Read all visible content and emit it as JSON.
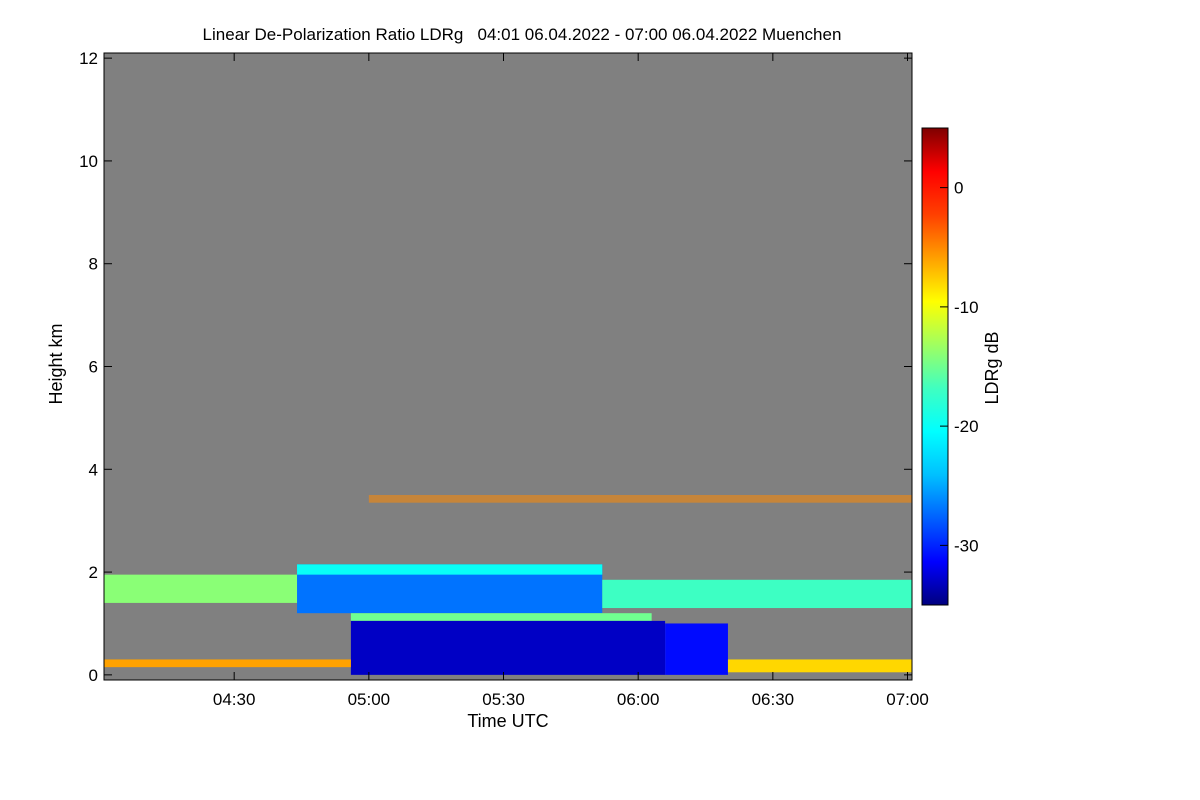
{
  "chart_data": {
    "type": "heatmap",
    "title": "Linear De-Polarization Ratio LDRg   04:01 06.04.2022 - 07:00 06.04.2022 Muenchen",
    "xlabel": "Time UTC",
    "ylabel": "Height km",
    "colorbar_label": "LDRg dB",
    "x_range_minutes": [
      241,
      421
    ],
    "y_range_km": [
      -0.1,
      12.1
    ],
    "x_ticks": [
      {
        "minutes": 270,
        "label": "04:30"
      },
      {
        "minutes": 300,
        "label": "05:00"
      },
      {
        "minutes": 330,
        "label": "05:30"
      },
      {
        "minutes": 360,
        "label": "06:00"
      },
      {
        "minutes": 390,
        "label": "06:30"
      },
      {
        "minutes": 420,
        "label": "07:00"
      }
    ],
    "y_ticks": [
      {
        "value": 0,
        "label": "0"
      },
      {
        "value": 2,
        "label": "2"
      },
      {
        "value": 4,
        "label": "4"
      },
      {
        "value": 6,
        "label": "6"
      },
      {
        "value": 8,
        "label": "8"
      },
      {
        "value": 10,
        "label": "10"
      },
      {
        "value": 12,
        "label": "12"
      }
    ],
    "colorbar_range_db": [
      -35,
      5
    ],
    "colorbar_ticks": [
      {
        "value": 0,
        "label": "0"
      },
      {
        "value": -10,
        "label": "-10"
      },
      {
        "value": -20,
        "label": "-20"
      },
      {
        "value": -30,
        "label": "-30"
      }
    ],
    "colormap": [
      "#00007f",
      "#0000ff",
      "#0060ff",
      "#00c0ff",
      "#00ffff",
      "#40ffc0",
      "#a0ff60",
      "#ffff00",
      "#ffa000",
      "#ff4000",
      "#ff0000",
      "#7f0000"
    ],
    "no_data_color": "#808080",
    "regions": [
      {
        "name": "cloud-upper-layer",
        "t_start": 284,
        "t_end": 352,
        "h_bottom": 1.2,
        "h_top": 2.15,
        "ldr_db": -27
      },
      {
        "name": "cloud-upper-edge",
        "t_start": 284,
        "t_end": 352,
        "h_bottom": 1.95,
        "h_top": 2.15,
        "ldr_db": -20
      },
      {
        "name": "cloud-base-line",
        "t_start": 296,
        "t_end": 363,
        "h_bottom": 1.05,
        "h_top": 1.2,
        "ldr_db": -15
      },
      {
        "name": "precip-below-cloud",
        "t_start": 296,
        "t_end": 366,
        "h_bottom": 0.0,
        "h_top": 1.05,
        "ldr_db": -33
      },
      {
        "name": "aerosol-layer-early",
        "t_start": 241,
        "t_end": 284,
        "h_bottom": 1.4,
        "h_top": 1.95,
        "ldr_db": -14
      },
      {
        "name": "aerosol-layer-late",
        "t_start": 352,
        "t_end": 421,
        "h_bottom": 1.3,
        "h_top": 1.85,
        "ldr_db": -17
      },
      {
        "name": "drizzle-tail",
        "t_start": 366,
        "t_end": 380,
        "h_bottom": 0.0,
        "h_top": 1.0,
        "ldr_db": -31
      },
      {
        "name": "surface-layer-early",
        "t_start": 241,
        "t_end": 296,
        "h_bottom": 0.15,
        "h_top": 0.3,
        "ldr_db": -6
      },
      {
        "name": "surface-layer-late",
        "t_start": 380,
        "t_end": 421,
        "h_bottom": 0.05,
        "h_top": 0.3,
        "ldr_db": -8
      },
      {
        "name": "elevated-speckles",
        "t_start": 300,
        "t_end": 421,
        "h_bottom": 3.35,
        "h_top": 3.5,
        "ldr_db": -5
      }
    ]
  }
}
